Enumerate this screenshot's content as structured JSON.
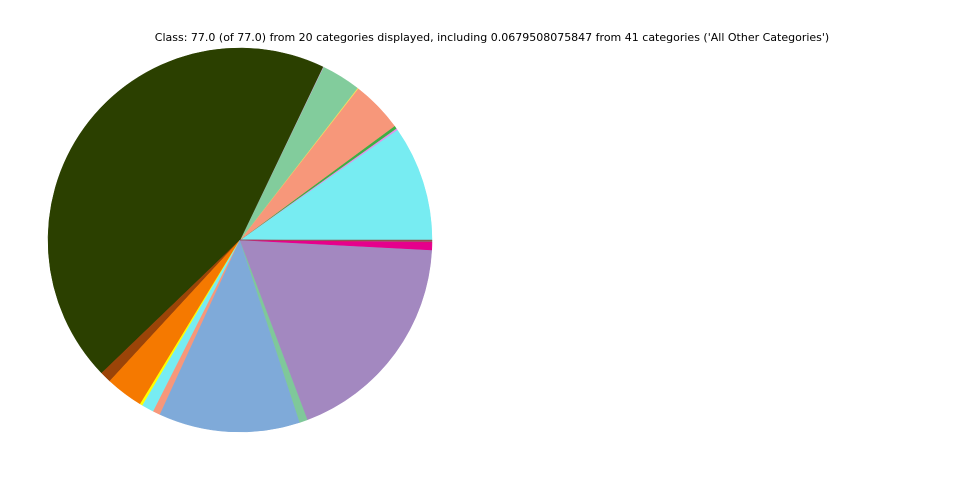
{
  "chart_data": {
    "type": "pie",
    "title": "Class: 77.0 (of 77.0) from 20 categories displayed, including 0.0679508075847 from 41 categories ('All Other Categories')",
    "categories": [
      null,
      null,
      null,
      null,
      null,
      null,
      null,
      null,
      null,
      null,
      null,
      null,
      null,
      null,
      null,
      null,
      null,
      null,
      null,
      null
    ],
    "values": [
      7.49,
      0.11,
      0.19,
      3.34,
      0.06,
      2.55,
      0.04,
      34.11,
      0.73,
      2.44,
      0.17,
      0.79,
      0.47,
      9.15,
      0.53,
      14.2,
      0.51,
      0.03,
      0.03,
      0.068
    ],
    "colors": [
      "#77ecf2",
      "#e48fe8",
      "#3cb043",
      "#f7977a",
      "#f6e05e",
      "#82cc9c",
      "#c5b0d5",
      "#2b4000",
      "#9b4408",
      "#f57900",
      "#ffff00",
      "#77ecf2",
      "#f7977a",
      "#7faad9",
      "#7fc89a",
      "#a388c0",
      "#e6008c",
      "#d62728",
      "#9467bd",
      "#8c564b"
    ],
    "start_angle": 0,
    "direction": "counterclockwise"
  }
}
